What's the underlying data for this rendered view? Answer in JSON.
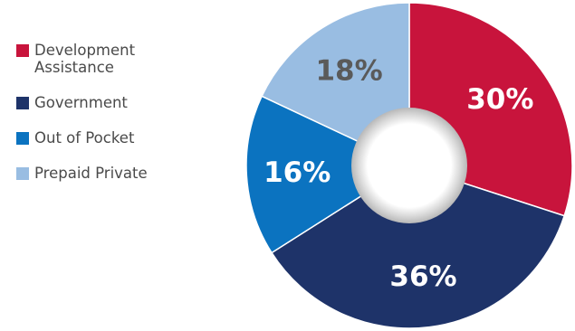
{
  "chart_data": {
    "type": "pie",
    "style": "donut",
    "categories": [
      "Development Assistance",
      "Government",
      "Out of Pocket",
      "Prepaid Private"
    ],
    "values": [
      30,
      36,
      16,
      18
    ],
    "unit": "%",
    "data_labels": [
      "30%",
      "36%",
      "16%",
      "18%"
    ],
    "colors": [
      "#c8143c",
      "#1e3369",
      "#0b73c0",
      "#99bde2"
    ],
    "label_colors": [
      "#ffffff",
      "#ffffff",
      "#ffffff",
      "#5a5a5a"
    ],
    "title": "",
    "legend_position": "left",
    "start_angle_deg": 0,
    "direction": "clockwise"
  }
}
